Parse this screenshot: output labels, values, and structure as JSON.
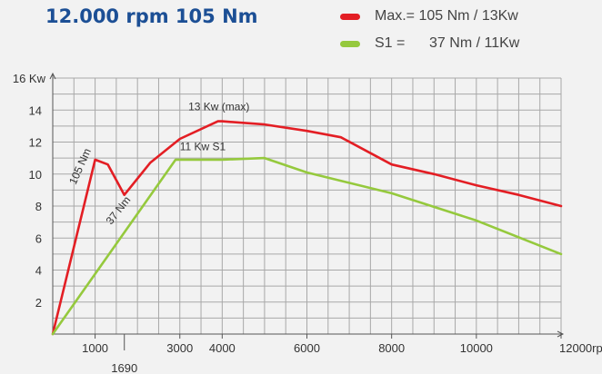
{
  "header": {
    "title": "12.000 rpm 105 Nm"
  },
  "legend": {
    "items": [
      {
        "label": "Max.= 105 Nm / 13Kw",
        "color": "#e31e24"
      },
      {
        "label": "S1 =      37 Nm / 11Kw",
        "color": "#95c93d"
      }
    ]
  },
  "chart_data": {
    "type": "line",
    "xlabel": "rpm",
    "ylabel": "Kw",
    "xlim": [
      0,
      12000
    ],
    "ylim": [
      0,
      16
    ],
    "grid": true,
    "x_ticks": [
      {
        "value": 1000,
        "label": "1000"
      },
      {
        "value": 1690,
        "label": "1690"
      },
      {
        "value": 3000,
        "label": "3000"
      },
      {
        "value": 4000,
        "label": "4000"
      },
      {
        "value": 6000,
        "label": "6000"
      },
      {
        "value": 8000,
        "label": "8000"
      },
      {
        "value": 10000,
        "label": "10000"
      },
      {
        "value": 12000,
        "label": "12000rpm"
      }
    ],
    "y_ticks": [
      {
        "value": 2,
        "label": "2"
      },
      {
        "value": 4,
        "label": "4"
      },
      {
        "value": 6,
        "label": "6"
      },
      {
        "value": 8,
        "label": "8"
      },
      {
        "value": 10,
        "label": "10"
      },
      {
        "value": 12,
        "label": "12"
      },
      {
        "value": 14,
        "label": "14"
      },
      {
        "value": 16,
        "label": "16 Kw"
      }
    ],
    "series": [
      {
        "name": "Max.= 105 Nm / 13Kw",
        "color": "#e31e24",
        "x": [
          0,
          1000,
          1300,
          1690,
          2300,
          3000,
          3900,
          4000,
          5000,
          6000,
          6800,
          8000,
          9000,
          10000,
          11000,
          12000
        ],
        "y": [
          0,
          10.9,
          10.6,
          8.7,
          10.7,
          12.2,
          13.3,
          13.3,
          13.1,
          12.7,
          12.3,
          10.6,
          10.0,
          9.3,
          8.7,
          8.0
        ]
      },
      {
        "name": "S1 =      37 Nm / 11Kw",
        "color": "#95c93d",
        "x": [
          0,
          2900,
          4000,
          5000,
          6000,
          8000,
          10000,
          12000
        ],
        "y": [
          0,
          10.9,
          10.9,
          11.0,
          10.1,
          8.8,
          7.1,
          5.0
        ]
      }
    ],
    "annotations": [
      {
        "text": "13 Kw (max)",
        "x": 3200,
        "y": 14.0
      },
      {
        "text": "11 Kw S1",
        "x": 3000,
        "y": 11.5
      },
      {
        "text": "105 Nm",
        "x": 540,
        "y": 9.3,
        "rotate": -66
      },
      {
        "text": "37 Nm",
        "x": 1380,
        "y": 6.8,
        "rotate": -52
      }
    ]
  }
}
